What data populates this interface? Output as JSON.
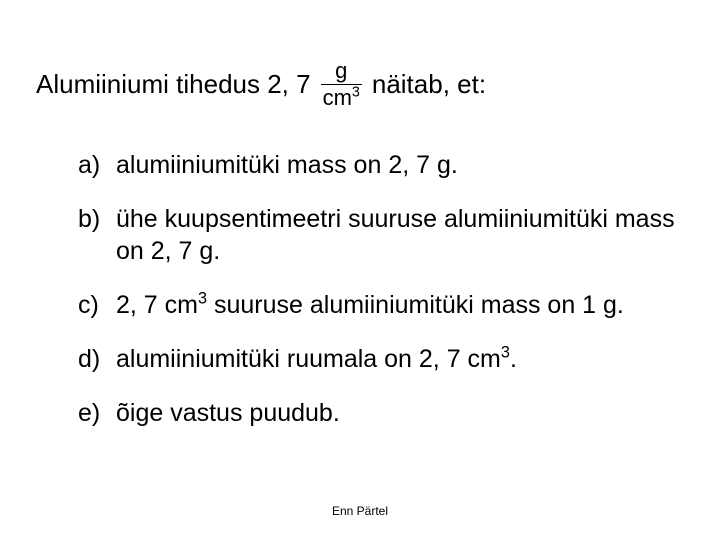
{
  "background_color": "#ffffff",
  "text_color": "#000000",
  "font_family": "Arial, Helvetica, sans-serif",
  "heading": {
    "before": "Alumiiniumi tihedus 2, 7",
    "after": "näitab, et:",
    "fraction_num": "g",
    "fraction_den": "cm",
    "fraction_den_sup": "3",
    "fontsize": 26
  },
  "options": {
    "fontsize": 25,
    "items": [
      {
        "marker": "a)",
        "text": "alumiiniumitüki mass on 2, 7 g."
      },
      {
        "marker": "b)",
        "text": "ühe kuupsentimeetri suuruse alumiiniumitüki mass on 2, 7 g."
      },
      {
        "marker": "c)",
        "text_html": "2, 7 cm<sup>3</sup> suuruse alumiiniumitüki mass on 1 g."
      },
      {
        "marker": "d)",
        "text_html": "alumiiniumitüki ruumala on 2, 7 cm<sup>3</sup>."
      },
      {
        "marker": "e)",
        "text": "õige vastus puudub."
      }
    ]
  },
  "footer": "Enn Pärtel"
}
